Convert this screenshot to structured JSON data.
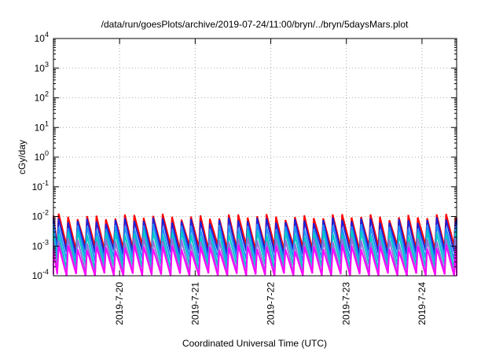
{
  "chart_data": {
    "type": "line",
    "title": "/data/run/goesPlots/archive/2019-07-24/11:00/bryn/../bryn/5daysMars.plot",
    "xlabel": "Coordinated Universal Time (UTC)",
    "ylabel": "cGy/day",
    "yscale": "log",
    "ylim": [
      0.0001,
      10000
    ],
    "y_ticks": [
      {
        "value": 0.0001,
        "base": "10",
        "exp": "-4"
      },
      {
        "value": 0.001,
        "base": "10",
        "exp": "-3"
      },
      {
        "value": 0.01,
        "base": "10",
        "exp": "-2"
      },
      {
        "value": 0.1,
        "base": "10",
        "exp": "-1"
      },
      {
        "value": 1,
        "base": "10",
        "exp": "0"
      },
      {
        "value": 10,
        "base": "10",
        "exp": "1"
      },
      {
        "value": 100,
        "base": "10",
        "exp": "2"
      },
      {
        "value": 1000,
        "base": "10",
        "exp": "3"
      },
      {
        "value": 10000,
        "base": "10",
        "exp": "4"
      }
    ],
    "xlim": [
      "2019-07-19T03:00",
      "2019-07-24T11:00"
    ],
    "x_ticks": [
      "2019-7-20",
      "2019-7-21",
      "2019-7-22",
      "2019-7-23",
      "2019-7-24"
    ],
    "grid": true,
    "legend": "none",
    "sawtooth_period_hours": 3,
    "series": [
      {
        "color": "#ff0000",
        "peak": 0.01,
        "trough": 0.0009
      },
      {
        "color": "#1f1fd6",
        "peak": 0.0075,
        "trough": 0.0006
      },
      {
        "color": "#1e90ff",
        "peak": 0.0045,
        "trough": 0.00035
      },
      {
        "color": "#00c8c8",
        "peak": 0.0028,
        "trough": 0.0002
      },
      {
        "color": "#9370db",
        "peak": 0.0016,
        "trough": 0.00012
      },
      {
        "color": "#ff00ff",
        "peak": 0.0009,
        "trough": 0.0001
      }
    ]
  }
}
